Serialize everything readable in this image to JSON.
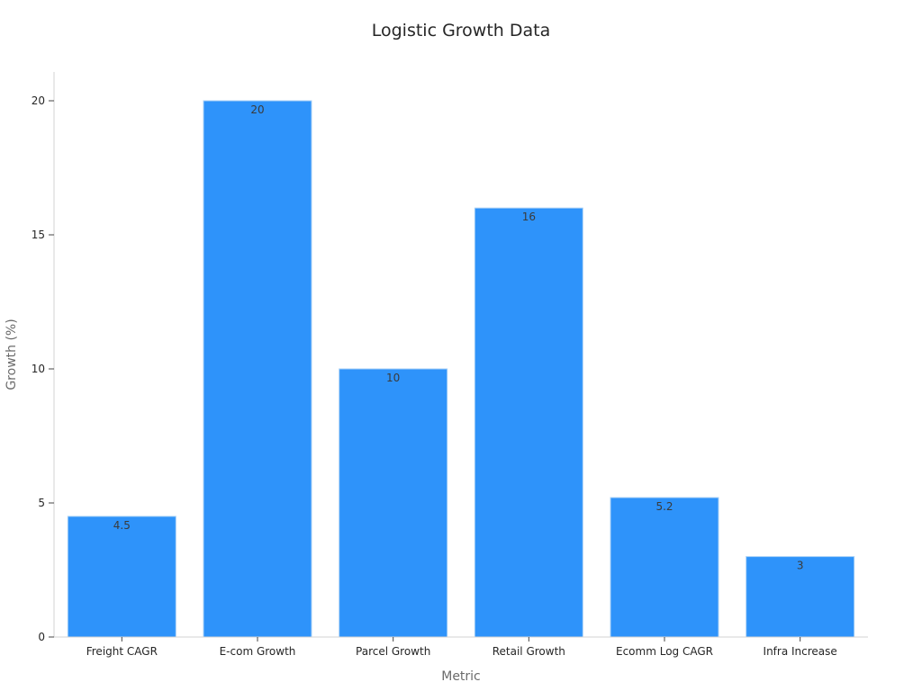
{
  "chart_data": {
    "type": "bar",
    "title": "Logistic Growth Data",
    "xlabel": "Metric",
    "ylabel": "Growth (%)",
    "categories": [
      "Freight CAGR",
      "E-com Growth",
      "Parcel Growth",
      "Retail Growth",
      "Ecomm Log CAGR",
      "Infra Increase"
    ],
    "values": [
      4.5,
      20,
      10,
      16,
      5.2,
      3
    ],
    "value_labels": [
      "4.5",
      "20",
      "10",
      "16",
      "5.2",
      "3"
    ],
    "yticks": [
      0,
      5,
      10,
      15,
      20
    ],
    "ylim": [
      0,
      21
    ],
    "grid": false,
    "legend": null,
    "bar_color": "#2e93fa",
    "bar_edge_color": "#a9d1f7"
  }
}
